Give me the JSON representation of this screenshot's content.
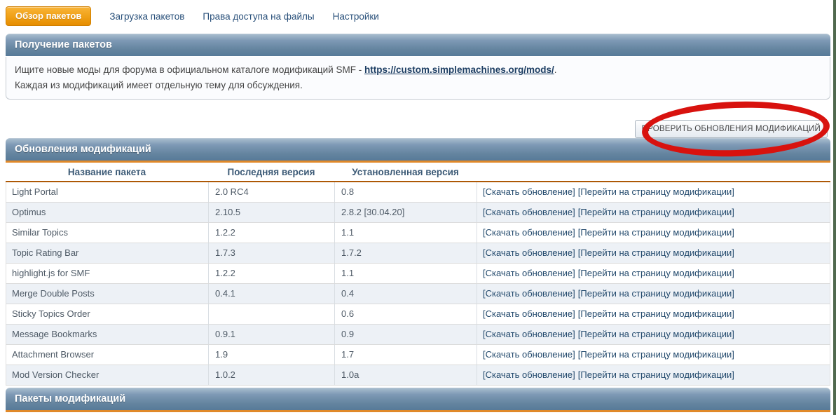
{
  "tabs": [
    {
      "label": "Обзор пакетов",
      "active": true
    },
    {
      "label": "Загрузка пакетов",
      "active": false
    },
    {
      "label": "Права доступа на файлы",
      "active": false
    },
    {
      "label": "Настройки",
      "active": false
    }
  ],
  "download_section": {
    "title": "Получение пакетов",
    "line1_prefix": "Ищите новые моды для форума в официальном каталоге модификаций SMF - ",
    "line1_link": "https://custom.simplemachines.org/mods/",
    "line1_suffix": ".",
    "line2": "Каждая из модификаций имеет отдельную тему для обсуждения."
  },
  "updates_section": {
    "title": "Обновления модификаций",
    "check_button": "ПРОВЕРИТЬ ОБНОВЛЕНИЯ МОДИФИКАЦИЙ",
    "columns": [
      "Название пакета",
      "Последняя версия",
      "Установленная версия"
    ],
    "actions": {
      "download": "[Скачать обновление]",
      "goto_page": "[Перейти на страницу модификации]"
    },
    "rows": [
      {
        "name": "Light Portal",
        "latest": "2.0 RC4",
        "installed": "0.8"
      },
      {
        "name": "Optimus",
        "latest": "2.10.5",
        "installed": "2.8.2 [30.04.20]"
      },
      {
        "name": "Similar Topics",
        "latest": "1.2.2",
        "installed": "1.1"
      },
      {
        "name": "Topic Rating Bar",
        "latest": "1.7.3",
        "installed": "1.7.2"
      },
      {
        "name": "highlight.js for SMF",
        "latest": "1.2.2",
        "installed": "1.1"
      },
      {
        "name": "Merge Double Posts",
        "latest": "0.4.1",
        "installed": "0.4"
      },
      {
        "name": "Sticky Topics Order",
        "latest": "",
        "installed": "0.6"
      },
      {
        "name": "Message Bookmarks",
        "latest": "0.9.1",
        "installed": "0.9"
      },
      {
        "name": "Attachment Browser",
        "latest": "1.9",
        "installed": "1.7"
      },
      {
        "name": "Mod Version Checker",
        "latest": "1.0.2",
        "installed": "1.0a"
      }
    ]
  },
  "packages_section": {
    "title": "Пакеты модификаций"
  },
  "colors": {
    "accent_orange_line": "#e0892a",
    "dark_orange_line": "#ad5806",
    "catbar_blue_top": "#a7bccd",
    "catbar_blue_bottom": "#577a99",
    "active_tab_orange": "#efa016",
    "annotation_red": "#d8120e",
    "link_blue": "#1d3e63",
    "alt_row_bg": "#edf1f6"
  }
}
